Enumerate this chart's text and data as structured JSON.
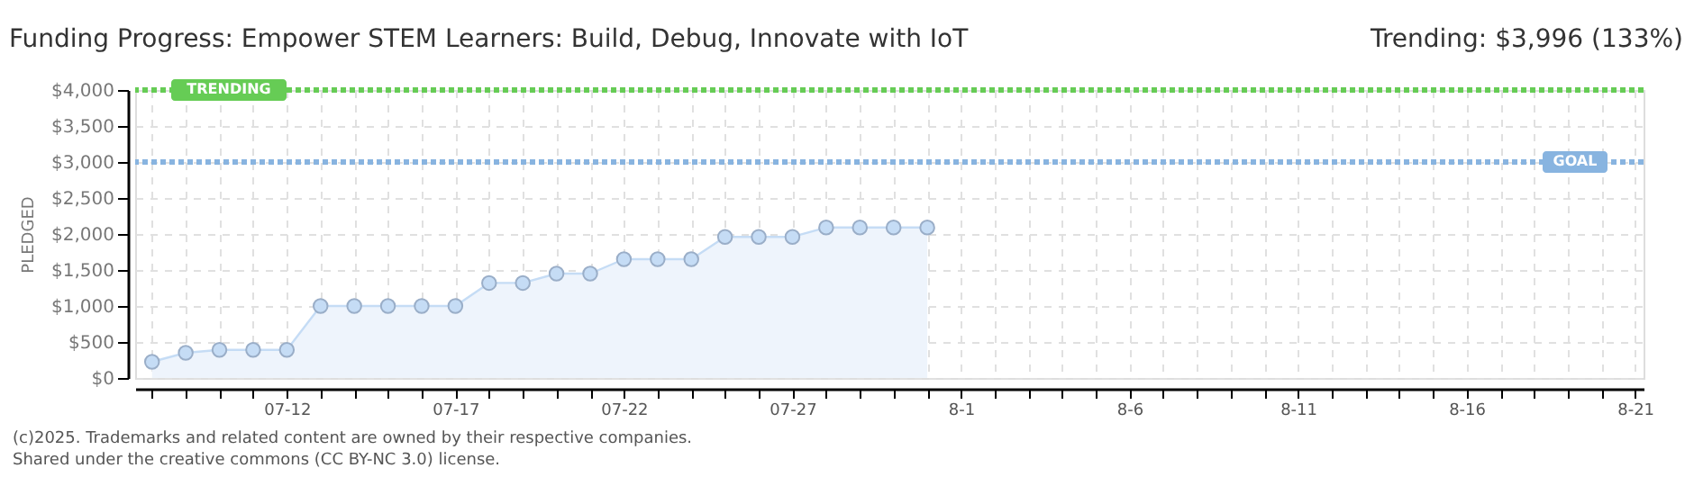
{
  "chart_data": {
    "type": "area",
    "title": "Funding Progress: Empower STEM Learners: Build, Debug, Innovate with IoT",
    "subtitle": "Trending:  $3,996 (133%)",
    "ylabel": "PLEDGED",
    "x": [
      "2025-07-08",
      "2025-07-09",
      "2025-07-10",
      "2025-07-11",
      "2025-07-12",
      "2025-07-13",
      "2025-07-14",
      "2025-07-15",
      "2025-07-16",
      "2025-07-17",
      "2025-07-18",
      "2025-07-19",
      "2025-07-20",
      "2025-07-21",
      "2025-07-22",
      "2025-07-23",
      "2025-07-24",
      "2025-07-25",
      "2025-07-26",
      "2025-07-27",
      "2025-07-28",
      "2025-07-29",
      "2025-07-30",
      "2025-07-31"
    ],
    "series": [
      {
        "color": "#c5dcf5",
        "values": [
          225,
          350,
          390,
          390,
          390,
          1000,
          1000,
          1000,
          1000,
          1000,
          1320,
          1320,
          1450,
          1450,
          1650,
          1650,
          1650,
          1960,
          1960,
          1960,
          2090,
          2090,
          2090,
          2090
        ]
      }
    ],
    "xlim": [
      "2025-07-07T12:00",
      "2025-08-21T06:00"
    ],
    "xticks": [
      {
        "value": "2025-07-08",
        "label": null
      },
      {
        "value": "2025-07-09",
        "label": null
      },
      {
        "value": "2025-07-10",
        "label": null
      },
      {
        "value": "2025-07-11",
        "label": null
      },
      {
        "value": "2025-07-12",
        "label": "07-12"
      },
      {
        "value": "2025-07-13",
        "label": null
      },
      {
        "value": "2025-07-14",
        "label": null
      },
      {
        "value": "2025-07-15",
        "label": null
      },
      {
        "value": "2025-07-16",
        "label": null
      },
      {
        "value": "2025-07-17",
        "label": "07-17"
      },
      {
        "value": "2025-07-18",
        "label": null
      },
      {
        "value": "2025-07-19",
        "label": null
      },
      {
        "value": "2025-07-20",
        "label": null
      },
      {
        "value": "2025-07-21",
        "label": null
      },
      {
        "value": "2025-07-22",
        "label": "07-22"
      },
      {
        "value": "2025-07-23",
        "label": null
      },
      {
        "value": "2025-07-24",
        "label": null
      },
      {
        "value": "2025-07-25",
        "label": null
      },
      {
        "value": "2025-07-26",
        "label": null
      },
      {
        "value": "2025-07-27",
        "label": "07-27"
      },
      {
        "value": "2025-07-28",
        "label": null
      },
      {
        "value": "2025-07-29",
        "label": null
      },
      {
        "value": "2025-07-30",
        "label": null
      },
      {
        "value": "2025-07-31",
        "label": null
      },
      {
        "value": "2025-08-01",
        "label": "8-1"
      },
      {
        "value": "2025-08-02",
        "label": null
      },
      {
        "value": "2025-08-03",
        "label": null
      },
      {
        "value": "2025-08-04",
        "label": null
      },
      {
        "value": "2025-08-05",
        "label": null
      },
      {
        "value": "2025-08-06",
        "label": "8-6"
      },
      {
        "value": "2025-08-07",
        "label": null
      },
      {
        "value": "2025-08-08",
        "label": null
      },
      {
        "value": "2025-08-09",
        "label": null
      },
      {
        "value": "2025-08-10",
        "label": null
      },
      {
        "value": "2025-08-11",
        "label": "8-11"
      },
      {
        "value": "2025-08-12",
        "label": null
      },
      {
        "value": "2025-08-13",
        "label": null
      },
      {
        "value": "2025-08-14",
        "label": null
      },
      {
        "value": "2025-08-15",
        "label": null
      },
      {
        "value": "2025-08-16",
        "label": "8-16"
      },
      {
        "value": "2025-08-17",
        "label": null
      },
      {
        "value": "2025-08-18",
        "label": null
      },
      {
        "value": "2025-08-19",
        "label": null
      },
      {
        "value": "2025-08-20",
        "label": null
      },
      {
        "value": "2025-08-21",
        "label": "8-21"
      }
    ],
    "ylim": [
      0,
      4000
    ],
    "yticks": [
      {
        "value": 0,
        "label": "$0"
      },
      {
        "value": 500,
        "label": "$500"
      },
      {
        "value": 1000,
        "label": "$1,000"
      },
      {
        "value": 1500,
        "label": "$1,500"
      },
      {
        "value": 2000,
        "label": "$2,000"
      },
      {
        "value": 2500,
        "label": "$2,500"
      },
      {
        "value": 3000,
        "label": "$3,000"
      },
      {
        "value": 3500,
        "label": "$3,500"
      },
      {
        "value": 4000,
        "label": "$4,000"
      }
    ],
    "ref_lines": [
      {
        "axis": "y",
        "value": 4000,
        "label": "TRENDING",
        "color": "#66cc55",
        "line_style": "dotted"
      },
      {
        "axis": "y",
        "value": 3000,
        "label": "GOAL",
        "color": "#88b4e0",
        "line_style": "dotted"
      }
    ],
    "annotations": [
      "(c)2025. Trademarks and related content are owned by their respective companies.",
      "Shared under the creative commons (CC BY-NC 3.0) license."
    ],
    "grid": true,
    "marker": "circle",
    "line_style": "solid"
  }
}
